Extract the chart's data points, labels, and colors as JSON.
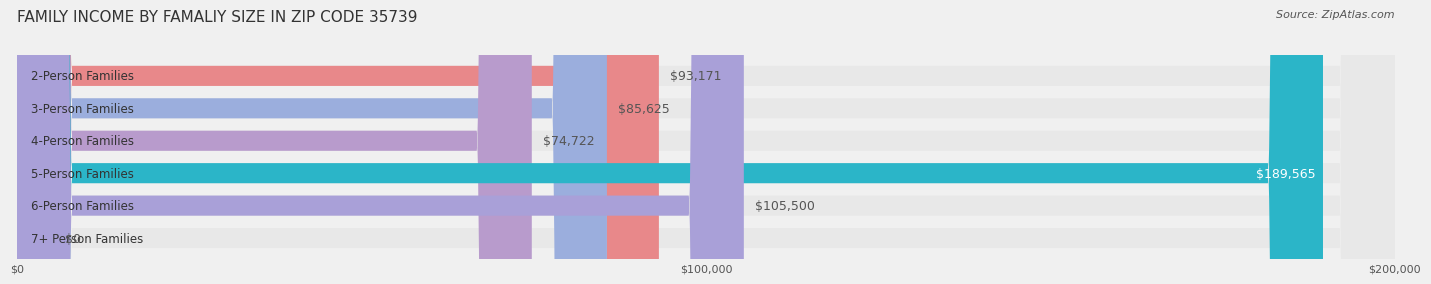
{
  "title": "FAMILY INCOME BY FAMALIY SIZE IN ZIP CODE 35739",
  "source": "Source: ZipAtlas.com",
  "categories": [
    "2-Person Families",
    "3-Person Families",
    "4-Person Families",
    "5-Person Families",
    "6-Person Families",
    "7+ Person Families"
  ],
  "values": [
    93171,
    85625,
    74722,
    189565,
    105500,
    0
  ],
  "bar_colors": [
    "#e8888a",
    "#9baedd",
    "#b89bcc",
    "#2bb5c8",
    "#a9a0d8",
    "#f0a0b0"
  ],
  "label_texts": [
    "$93,171",
    "$85,625",
    "$74,722",
    "$189,565",
    "$105,500",
    "$0"
  ],
  "label_colors": [
    "#555555",
    "#555555",
    "#555555",
    "#ffffff",
    "#555555",
    "#555555"
  ],
  "xlim": [
    0,
    200000
  ],
  "xticks": [
    0,
    100000,
    200000
  ],
  "xtick_labels": [
    "$0",
    "$100,000",
    "$200,000"
  ],
  "background_color": "#f0f0f0",
  "bar_bg_color": "#e8e8e8",
  "title_fontsize": 11,
  "source_fontsize": 8,
  "label_fontsize": 9,
  "category_fontsize": 8.5,
  "bar_height": 0.62,
  "figsize": [
    14.06,
    3.05
  ]
}
